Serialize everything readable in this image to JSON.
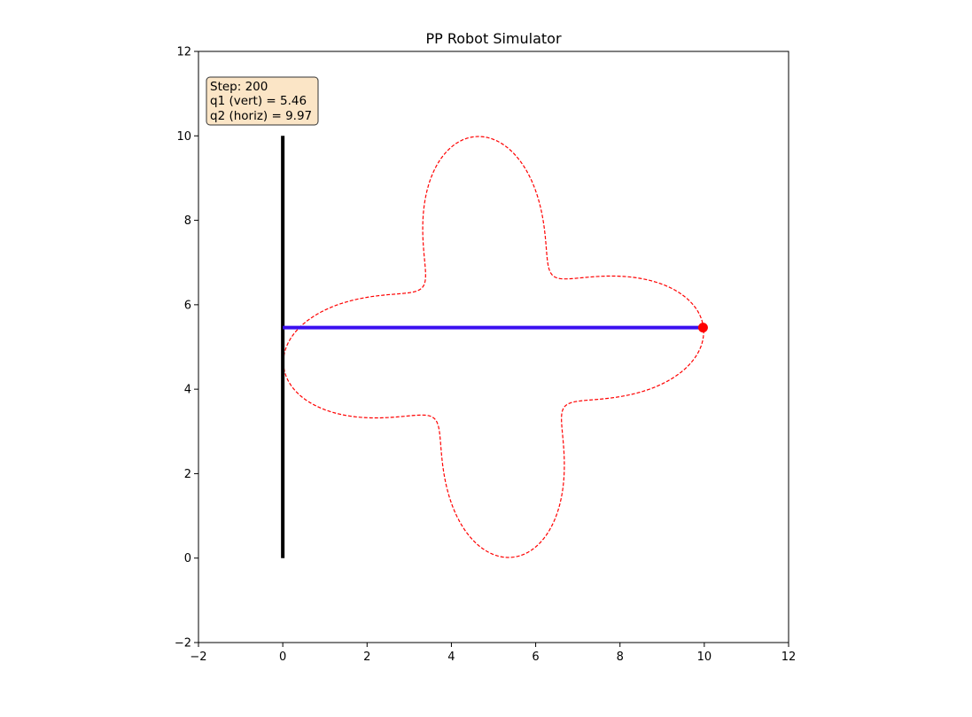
{
  "chart_data": {
    "type": "scatter",
    "title": "PP Robot Simulator",
    "xlabel": "",
    "ylabel": "",
    "xlim": [
      -2,
      12
    ],
    "ylim": [
      -2,
      12
    ],
    "xticks": [
      "−2",
      "0",
      "2",
      "4",
      "6",
      "8",
      "10",
      "12"
    ],
    "yticks": [
      "−2",
      "0",
      "2",
      "4",
      "6",
      "8",
      "10",
      "12"
    ],
    "grid": false,
    "info_box": {
      "lines": [
        "Step: 200",
        "q1 (vert) = 5.46",
        "q2 (horiz) = 9.97"
      ],
      "background": "#fbe5c6"
    },
    "vertical_link": {
      "x": [
        0,
        0
      ],
      "y": [
        0,
        10
      ],
      "color": "#000000"
    },
    "horizontal_link": {
      "x": [
        0,
        9.97
      ],
      "y": [
        5.46,
        5.46
      ],
      "color": "#3a0ff0"
    },
    "end_effector": {
      "x": 9.97,
      "y": 5.46,
      "color": "#ff0000"
    },
    "trajectory": {
      "color": "#ff0000",
      "style": "dashed",
      "description_points": "rose curve traced by end effector",
      "curve": {
        "cx": 5.0,
        "cy": 5.0,
        "r0": 3.6,
        "r1": 1.4,
        "petals": 4,
        "phase_deg": 5
      }
    }
  }
}
